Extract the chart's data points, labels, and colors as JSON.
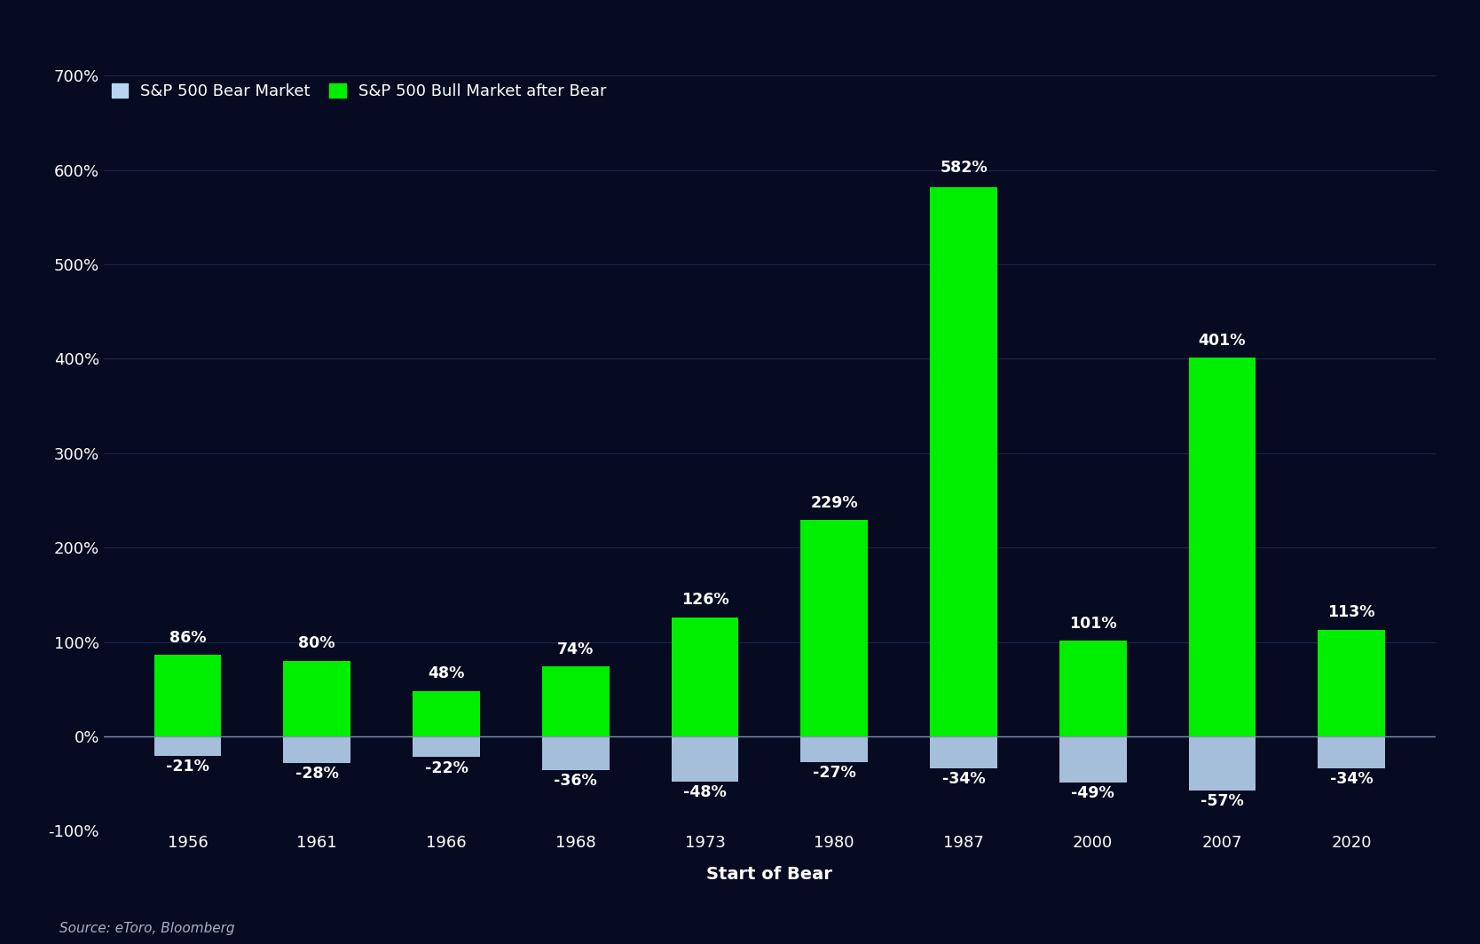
{
  "categories": [
    "1956",
    "1961",
    "1966",
    "1968",
    "1973",
    "1980",
    "1987",
    "2000",
    "2007",
    "2020"
  ],
  "bear_values": [
    -21,
    -28,
    -22,
    -36,
    -48,
    -27,
    -34,
    -49,
    -57,
    -34
  ],
  "bull_values": [
    86,
    80,
    48,
    74,
    126,
    229,
    582,
    101,
    401,
    113
  ],
  "bear_color": "#b8d4f0",
  "bull_color": "#00ee00",
  "background_color": "#060b21",
  "text_color": "#ffffff",
  "grid_color": "#1a2a50",
  "xlabel": "Start of Bear",
  "legend_bear": "S&P 500 Bear Market",
  "legend_bull": "S&P 500 Bull Market after Bear",
  "source": "Source: eToro, Bloomberg",
  "ylim_min": -100,
  "ylim_max": 700,
  "yticks": [
    -100,
    0,
    100,
    200,
    300,
    400,
    500,
    600,
    700
  ]
}
